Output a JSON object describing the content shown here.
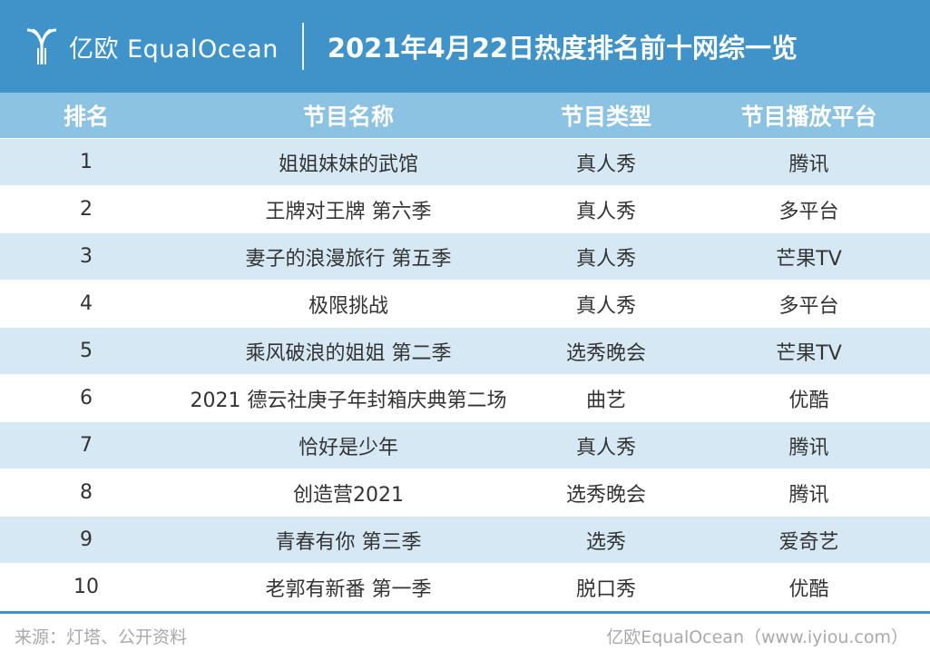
{
  "header": {
    "logo_text": "亿欧 EqualOcean",
    "title": "2021年4月22日热度排名前十网综一览"
  },
  "table": {
    "columns": [
      "排名",
      "节目名称",
      "节目类型",
      "节目播放平台"
    ],
    "rows": [
      [
        "1",
        "姐姐妹妹的武馆",
        "真人秀",
        "腾讯"
      ],
      [
        "2",
        "王牌对王牌 第六季",
        "真人秀",
        "多平台"
      ],
      [
        "3",
        "妻子的浪漫旅行 第五季",
        "真人秀",
        "芒果TV"
      ],
      [
        "4",
        "极限挑战",
        "真人秀",
        "多平台"
      ],
      [
        "5",
        "乘风破浪的姐姐 第二季",
        "选秀晚会",
        "芒果TV"
      ],
      [
        "6",
        "2021 德云社庚子年封箱庆典第二场",
        "曲艺",
        "优酷"
      ],
      [
        "7",
        "恰好是少年",
        "真人秀",
        "腾讯"
      ],
      [
        "8",
        "创造营2021",
        "选秀晚会",
        "腾讯"
      ],
      [
        "9",
        "青春有你 第三季",
        "选秀",
        "爱奇艺"
      ],
      [
        "10",
        "老郭有新番 第一季",
        "脱口秀",
        "优酷"
      ]
    ]
  },
  "footer": {
    "source": "来源：灯塔、公开资料",
    "brand": "亿欧EqualOcean（www.iyiou.com）"
  },
  "colors": {
    "header_bg": "#3f93c9",
    "column_header_bg": "#8cc3e2",
    "stripe_bg": "#d5e8f4",
    "text": "#333333",
    "footer_text": "#a9a9a9"
  }
}
